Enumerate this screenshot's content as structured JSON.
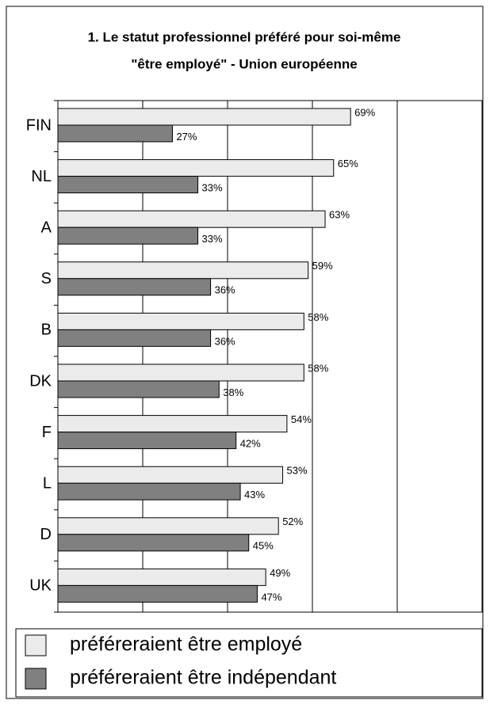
{
  "chart_data": {
    "type": "hbar",
    "title": [
      "1. Le statut professionnel préféré pour soi-même",
      "\"être employé\" - Union européenne"
    ],
    "categories": [
      "FIN",
      "NL",
      "A",
      "S",
      "B",
      "DK",
      "F",
      "L",
      "D",
      "UK"
    ],
    "series": [
      {
        "name": "préféreraient être employé",
        "color": "#ebebeb",
        "values": [
          69,
          65,
          63,
          59,
          58,
          58,
          54,
          53,
          52,
          49
        ],
        "value_labels": [
          "69%",
          "65%",
          "63%",
          "59%",
          "58%",
          "58%",
          "54%",
          "53%",
          "52%",
          "49%"
        ]
      },
      {
        "name": "préféreraient être indépendant",
        "color": "#808080",
        "values": [
          27,
          33,
          33,
          36,
          36,
          38,
          42,
          43,
          45,
          47
        ],
        "value_labels": [
          "27%",
          "33%",
          "33%",
          "36%",
          "36%",
          "38%",
          "42%",
          "43%",
          "45%",
          "47%"
        ]
      }
    ],
    "xlim": [
      0,
      100
    ],
    "xticks": [
      0,
      20,
      40,
      60,
      80,
      100
    ],
    "grid": true
  }
}
